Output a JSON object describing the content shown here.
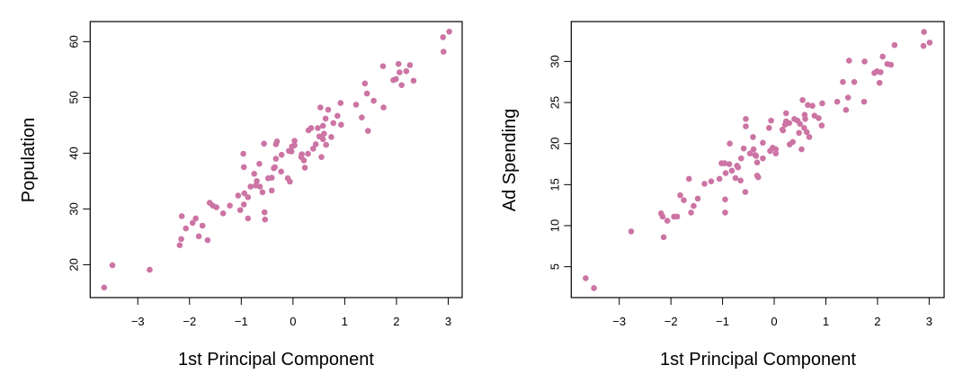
{
  "chart_data": [
    {
      "type": "scatter",
      "xlabel": "1st Principal Component",
      "ylabel": "Population",
      "xlim": [
        -3.92,
        3.27
      ],
      "ylim": [
        14.1,
        63.6
      ],
      "xticks": [
        -3,
        -2,
        -1,
        0,
        1,
        2,
        3
      ],
      "yticks": [
        20,
        30,
        40,
        50,
        60
      ],
      "grid": false,
      "point_color": "#cc74a4",
      "points": [
        [
          -3.65,
          15.9
        ],
        [
          -3.49,
          19.9
        ],
        [
          -2.77,
          19.1
        ],
        [
          -2.19,
          23.5
        ],
        [
          -2.16,
          24.6
        ],
        [
          -2.15,
          28.7
        ],
        [
          -2.07,
          26.5
        ],
        [
          -1.94,
          27.5
        ],
        [
          -1.88,
          28.3
        ],
        [
          -1.82,
          25.1
        ],
        [
          -1.75,
          27.0
        ],
        [
          -1.65,
          24.4
        ],
        [
          -1.61,
          31.1
        ],
        [
          -1.55,
          30.6
        ],
        [
          -1.48,
          30.3
        ],
        [
          -1.35,
          29.2
        ],
        [
          -1.22,
          30.6
        ],
        [
          -1.06,
          32.4
        ],
        [
          -1.02,
          29.8
        ],
        [
          -0.96,
          39.9
        ],
        [
          -0.95,
          37.5
        ],
        [
          -0.95,
          30.8
        ],
        [
          -0.94,
          32.8
        ],
        [
          -0.87,
          32.1
        ],
        [
          -0.87,
          28.3
        ],
        [
          -0.82,
          34.0
        ],
        [
          -0.75,
          36.3
        ],
        [
          -0.72,
          34.2
        ],
        [
          -0.7,
          35.0
        ],
        [
          -0.65,
          38.1
        ],
        [
          -0.64,
          34.0
        ],
        [
          -0.59,
          33.0
        ],
        [
          -0.56,
          41.7
        ],
        [
          -0.55,
          29.4
        ],
        [
          -0.54,
          28.1
        ],
        [
          -0.48,
          35.5
        ],
        [
          -0.41,
          35.6
        ],
        [
          -0.41,
          33.3
        ],
        [
          -0.37,
          37.3
        ],
        [
          -0.35,
          37.5
        ],
        [
          -0.33,
          39.0
        ],
        [
          -0.33,
          41.6
        ],
        [
          -0.31,
          42.1
        ],
        [
          -0.22,
          39.7
        ],
        [
          -0.23,
          36.7
        ],
        [
          -0.1,
          35.5
        ],
        [
          -0.06,
          34.9
        ],
        [
          -0.08,
          40.4
        ],
        [
          -0.03,
          40.3
        ],
        [
          -0.02,
          41.2
        ],
        [
          0.03,
          42.2
        ],
        [
          0.03,
          41.4
        ],
        [
          0.16,
          39.3
        ],
        [
          0.17,
          39.8
        ],
        [
          0.21,
          38.7
        ],
        [
          0.23,
          37.4
        ],
        [
          0.29,
          39.9
        ],
        [
          0.3,
          44.1
        ],
        [
          0.35,
          44.5
        ],
        [
          0.39,
          40.8
        ],
        [
          0.44,
          41.6
        ],
        [
          0.48,
          44.5
        ],
        [
          0.51,
          43.0
        ],
        [
          0.53,
          48.2
        ],
        [
          0.55,
          39.3
        ],
        [
          0.58,
          44.9
        ],
        [
          0.58,
          42.5
        ],
        [
          0.6,
          43.5
        ],
        [
          0.63,
          46.2
        ],
        [
          0.64,
          41.5
        ],
        [
          0.68,
          47.8
        ],
        [
          0.74,
          42.9
        ],
        [
          0.78,
          45.4
        ],
        [
          0.86,
          46.7
        ],
        [
          0.92,
          49.0
        ],
        [
          0.93,
          45.1
        ],
        [
          1.22,
          48.7
        ],
        [
          1.33,
          46.4
        ],
        [
          1.39,
          52.5
        ],
        [
          1.43,
          50.7
        ],
        [
          1.45,
          44.0
        ],
        [
          1.56,
          49.4
        ],
        [
          1.74,
          55.6
        ],
        [
          1.75,
          48.2
        ],
        [
          1.94,
          53.1
        ],
        [
          1.99,
          53.3
        ],
        [
          2.04,
          56.0
        ],
        [
          2.06,
          54.5
        ],
        [
          2.1,
          52.2
        ],
        [
          2.19,
          54.7
        ],
        [
          2.26,
          55.8
        ],
        [
          2.33,
          53.0
        ],
        [
          2.9,
          60.8
        ],
        [
          2.91,
          58.2
        ],
        [
          3.02,
          61.8
        ]
      ]
    },
    {
      "type": "scatter",
      "xlabel": "1st Principal Component",
      "ylabel": "Ad Spending",
      "xlim": [
        -3.93,
        3.29
      ],
      "ylim": [
        1.24,
        34.86
      ],
      "xticks": [
        -3,
        -2,
        -1,
        0,
        1,
        2,
        3
      ],
      "yticks": [
        5,
        10,
        15,
        20,
        25,
        30
      ],
      "grid": false,
      "point_color": "#cc74a4",
      "points": [
        [
          -3.65,
          3.6
        ],
        [
          -3.49,
          2.4
        ],
        [
          -2.77,
          9.3
        ],
        [
          -2.19,
          11.5
        ],
        [
          -2.16,
          11.1
        ],
        [
          -2.14,
          8.6
        ],
        [
          -2.07,
          10.6
        ],
        [
          -1.94,
          11.1
        ],
        [
          -1.88,
          11.1
        ],
        [
          -1.82,
          13.7
        ],
        [
          -1.75,
          13.1
        ],
        [
          -1.65,
          15.7
        ],
        [
          -1.61,
          11.6
        ],
        [
          -1.56,
          12.4
        ],
        [
          -1.48,
          13.3
        ],
        [
          -1.35,
          15.1
        ],
        [
          -1.22,
          15.4
        ],
        [
          -1.06,
          15.7
        ],
        [
          -1.02,
          17.6
        ],
        [
          -0.96,
          17.6
        ],
        [
          -0.95,
          13.2
        ],
        [
          -0.95,
          11.6
        ],
        [
          -0.94,
          16.4
        ],
        [
          -0.87,
          17.5
        ],
        [
          -0.86,
          20.0
        ],
        [
          -0.82,
          16.7
        ],
        [
          -0.75,
          15.8
        ],
        [
          -0.72,
          17.3
        ],
        [
          -0.7,
          17.1
        ],
        [
          -0.65,
          15.5
        ],
        [
          -0.64,
          18.2
        ],
        [
          -0.59,
          19.4
        ],
        [
          -0.56,
          14.1
        ],
        [
          -0.55,
          23.0
        ],
        [
          -0.55,
          22.1
        ],
        [
          -0.47,
          18.8
        ],
        [
          -0.41,
          20.8
        ],
        [
          -0.4,
          19.3
        ],
        [
          -0.37,
          18.6
        ],
        [
          -0.35,
          18.5
        ],
        [
          -0.33,
          17.7
        ],
        [
          -0.33,
          16.1
        ],
        [
          -0.31,
          15.9
        ],
        [
          -0.22,
          20.1
        ],
        [
          -0.22,
          18.2
        ],
        [
          -0.1,
          21.9
        ],
        [
          -0.06,
          22.8
        ],
        [
          -0.08,
          19.1
        ],
        [
          -0.03,
          19.5
        ],
        [
          0.03,
          19.3
        ],
        [
          0.03,
          18.8
        ],
        [
          0.16,
          21.7
        ],
        [
          0.17,
          21.6
        ],
        [
          0.21,
          22.3
        ],
        [
          0.23,
          23.7
        ],
        [
          0.23,
          22.7
        ],
        [
          0.29,
          22.5
        ],
        [
          0.3,
          19.9
        ],
        [
          0.36,
          20.2
        ],
        [
          0.39,
          23.0
        ],
        [
          0.45,
          22.8
        ],
        [
          0.48,
          21.3
        ],
        [
          0.5,
          22.4
        ],
        [
          0.53,
          19.3
        ],
        [
          0.55,
          25.3
        ],
        [
          0.59,
          23.5
        ],
        [
          0.6,
          23.0
        ],
        [
          0.58,
          21.9
        ],
        [
          0.63,
          21.4
        ],
        [
          0.65,
          24.7
        ],
        [
          0.68,
          20.8
        ],
        [
          0.74,
          24.6
        ],
        [
          0.78,
          23.4
        ],
        [
          0.86,
          23.1
        ],
        [
          0.92,
          22.2
        ],
        [
          0.93,
          24.9
        ],
        [
          1.22,
          25.1
        ],
        [
          1.33,
          27.5
        ],
        [
          1.39,
          24.1
        ],
        [
          1.43,
          25.6
        ],
        [
          1.45,
          30.1
        ],
        [
          1.55,
          27.5
        ],
        [
          1.74,
          25.1
        ],
        [
          1.75,
          30.0
        ],
        [
          1.94,
          28.6
        ],
        [
          1.99,
          28.8
        ],
        [
          2.04,
          27.4
        ],
        [
          2.06,
          28.7
        ],
        [
          2.1,
          30.6
        ],
        [
          2.19,
          29.7
        ],
        [
          2.26,
          29.6
        ],
        [
          2.33,
          32.0
        ],
        [
          2.89,
          31.9
        ],
        [
          2.9,
          33.6
        ],
        [
          3.01,
          32.3
        ]
      ]
    }
  ]
}
